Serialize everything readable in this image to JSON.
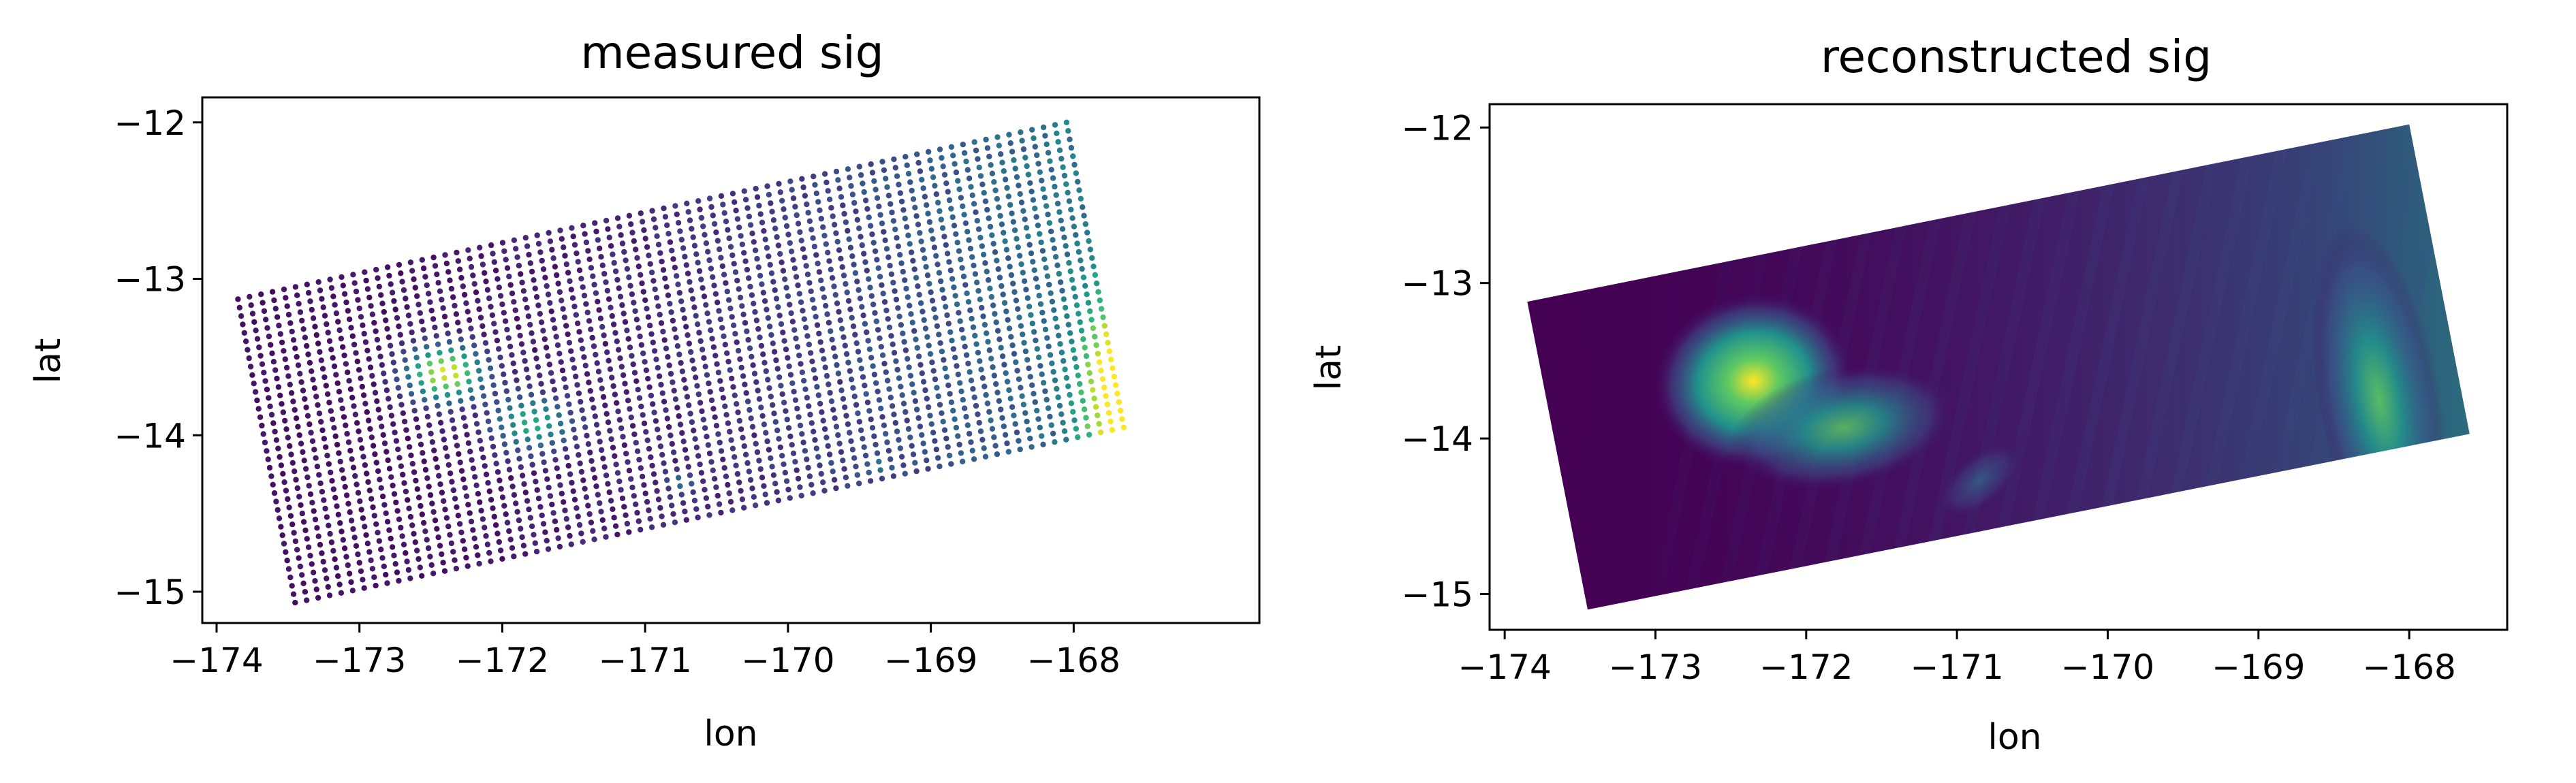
{
  "chart_data": [
    {
      "type": "scatter",
      "title": "measured sig",
      "xlabel": "lon",
      "ylabel": "lat",
      "xlim": [
        -174.1,
        -166.7
      ],
      "ylim": [
        -15.2,
        -11.84
      ],
      "xticks": [
        -174,
        -173,
        -172,
        -171,
        -170,
        -169,
        -168
      ],
      "yticks": [
        -12,
        -13,
        -14,
        -15
      ],
      "xtick_labels": [
        "−174",
        "−173",
        "−172",
        "−171",
        "−170",
        "−169",
        "−168"
      ],
      "ytick_labels": [
        "−12",
        "−13",
        "−14",
        "−15"
      ],
      "colormap": "viridis",
      "swath_corners": {
        "top_left": [
          -173.85,
          -13.13
        ],
        "top_right": [
          -168.05,
          -12.0
        ],
        "bottom_right": [
          -167.65,
          -13.95
        ],
        "bottom_left": [
          -173.45,
          -15.07
        ]
      },
      "grid_dims": {
        "across": 72,
        "along": 36
      },
      "features": [
        {
          "lon": -172.4,
          "lat": -13.6,
          "intensity": 0.9,
          "spread": 0.22
        },
        {
          "lon": -171.8,
          "lat": -13.92,
          "intensity": 0.55,
          "spread": 0.22
        },
        {
          "lon": -170.75,
          "lat": -14.3,
          "intensity": 0.25,
          "spread": 0.08
        },
        {
          "lon": -169.4,
          "lat": -14.2,
          "intensity": 0.18,
          "spread": 0.08
        }
      ],
      "east_edge": {
        "lon": -167.7,
        "lat": -13.7,
        "intensity": 1.0
      }
    },
    {
      "type": "heatmap",
      "title": "reconstructed sig",
      "xlabel": "lon",
      "ylabel": "lat",
      "xlim": [
        -174.1,
        -167.35
      ],
      "ylim": [
        -15.23,
        -11.85
      ],
      "xticks": [
        -174,
        -173,
        -172,
        -171,
        -170,
        -169,
        -168
      ],
      "yticks": [
        -12,
        -13,
        -14,
        -15
      ],
      "xtick_labels": [
        "−174",
        "−173",
        "−172",
        "−171",
        "−170",
        "−169",
        "−168"
      ],
      "ytick_labels": [
        "−12",
        "−13",
        "−14",
        "−15"
      ],
      "colormap": "viridis",
      "swath_corners": {
        "top_left": [
          -173.85,
          -13.12
        ],
        "top_right": [
          -168.0,
          -11.98
        ],
        "bottom_right": [
          -167.6,
          -13.97
        ],
        "bottom_left": [
          -173.45,
          -15.1
        ]
      },
      "features": [
        {
          "lon": -172.35,
          "lat": -13.63,
          "intensity": 0.95,
          "spread": 0.18
        },
        {
          "lon": -171.75,
          "lat": -13.93,
          "intensity": 0.6,
          "spread": 0.16
        },
        {
          "lon": -170.85,
          "lat": -14.27,
          "intensity": 0.35,
          "spread": 0.08
        },
        {
          "lon": -168.2,
          "lat": -13.75,
          "intensity": 0.65,
          "spread": 0.16
        }
      ]
    }
  ]
}
